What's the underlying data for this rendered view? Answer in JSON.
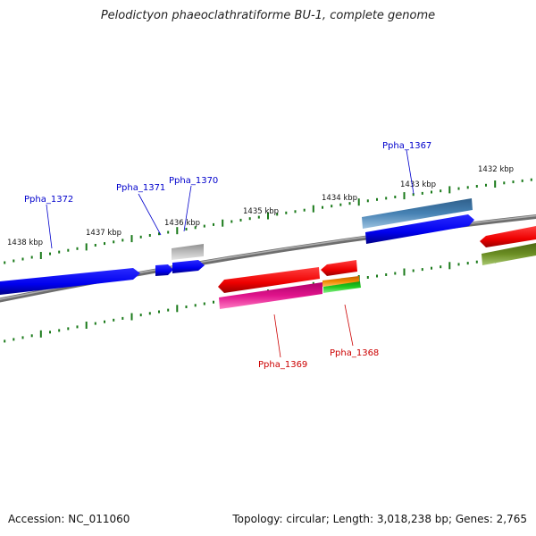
{
  "title": "Pelodictyon phaeoclathratiforme BU-1, complete genome",
  "footer": {
    "accession": "Accession: NC_011060",
    "summary": "Topology: circular; Length: 3,018,238 bp; Genes: 2,765"
  },
  "scale_labels": [
    "1438 kbp",
    "1437 kbp",
    "1436 kbp",
    "1435 kbp",
    "1434 kbp",
    "1433 kbp",
    "1432 kbp"
  ],
  "gene_labels": [
    {
      "text": "Ppha_1372",
      "color": "#0000cc"
    },
    {
      "text": "Ppha_1371",
      "color": "#0000cc"
    },
    {
      "text": "Ppha_1370",
      "color": "#0000cc"
    },
    {
      "text": "Ppha_1367",
      "color": "#0000cc"
    },
    {
      "text": "Ppha_1369",
      "color": "#cc0000"
    },
    {
      "text": "Ppha_1368",
      "color": "#cc0000"
    }
  ],
  "colors": {
    "backbone": "#808080",
    "tick": "#1a7a1a",
    "blue_gene": "#0000ee",
    "steel_gene": "#4682b4",
    "gray_gene": "#b0b0b0",
    "red_gene": "#ee0000",
    "magenta_gene": "#e0148c",
    "orange_gene": "#f08a00",
    "green_gene": "#22cc22",
    "olive_gene": "#6b8e23"
  }
}
